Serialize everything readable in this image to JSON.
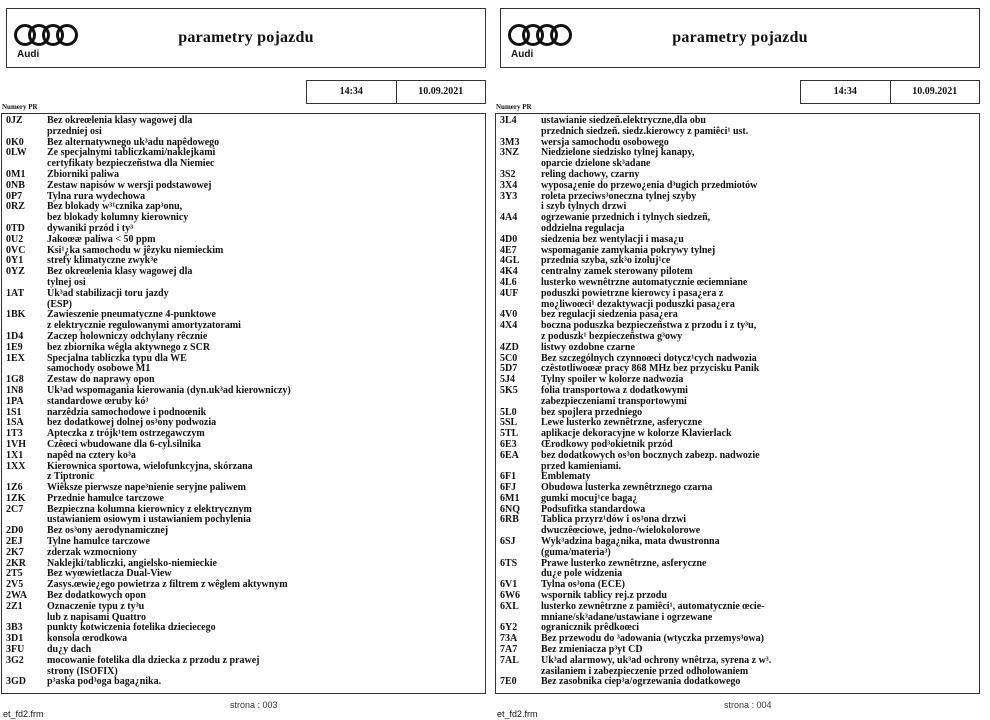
{
  "pages": [
    {
      "brand": "Audi",
      "title": "parametry pojazdu",
      "time": "14:34",
      "date": "10.09.2021",
      "section_label": "Numery PR",
      "page_number": "strona : 003",
      "form_name": "et_fd2.frm",
      "items": [
        {
          "code": "0JZ",
          "lines": [
            "Bez okreœlenia klasy wagowej dla",
            "przedniej osi"
          ]
        },
        {
          "code": "0K0",
          "lines": [
            "Bez alternatywnego uk³adu napêdowego"
          ]
        },
        {
          "code": "0LW",
          "lines": [
            "Ze specjalnymi tabliczkami/naklejkami",
            "certyfikaty bezpieczeñstwa dla Niemiec"
          ]
        },
        {
          "code": "0M1",
          "lines": [
            "Zbiorniki paliwa"
          ]
        },
        {
          "code": "0NB",
          "lines": [
            "Zestaw napisów w wersji podstawowej"
          ]
        },
        {
          "code": "0P7",
          "lines": [
            "Tylna rura wydechowa"
          ]
        },
        {
          "code": "0RZ",
          "lines": [
            "Bez blokady w³¹cznika zap³onu,",
            "bez blokady kolumny kierownicy"
          ]
        },
        {
          "code": "0TD",
          "lines": [
            "dywaniki przód i ty³"
          ]
        },
        {
          "code": "0U2",
          "lines": [
            "Jakoœæ paliwa < 50 ppm"
          ]
        },
        {
          "code": "0VC",
          "lines": [
            "Ksi¹¿ka samochodu w jêzyku niemieckim"
          ]
        },
        {
          "code": "0Y1",
          "lines": [
            "strefy klimatyczne zwyk³e"
          ]
        },
        {
          "code": "0YZ",
          "lines": [
            "Bez okreœlenia klasy wagowej dla",
            "tylnej osi"
          ]
        },
        {
          "code": "1AT",
          "lines": [
            "Uk³ad stabilizacji toru jazdy",
            "(ESP)"
          ]
        },
        {
          "code": "1BK",
          "lines": [
            "Zawieszenie pneumatyczne 4-punktowe",
            "z elektrycznie regulowanymi amortyzatorami"
          ]
        },
        {
          "code": "1D4",
          "lines": [
            "Zaczep holowniczy odchylany rêcznie"
          ]
        },
        {
          "code": "1E9",
          "lines": [
            "bez zbiornika wêgla aktywnego z SCR"
          ]
        },
        {
          "code": "1EX",
          "lines": [
            "Specjalna tabliczka typu dla WE",
            "samochody osobowe M1"
          ]
        },
        {
          "code": "1G8",
          "lines": [
            "Zestaw do naprawy opon"
          ]
        },
        {
          "code": "1N8",
          "lines": [
            "Uk³ad wspomagania kierowania (dyn.uk³ad kierowniczy)"
          ]
        },
        {
          "code": "1PA",
          "lines": [
            "standardowe œruby kó³"
          ]
        },
        {
          "code": "1S1",
          "lines": [
            "narzêdzia samochodowe i podnoœnik"
          ]
        },
        {
          "code": "1SA",
          "lines": [
            "bez dodatkowej dolnej os³ony podwozia"
          ]
        },
        {
          "code": "1T3",
          "lines": [
            "Apteczka z trójk¹tem ostrzegawczym"
          ]
        },
        {
          "code": "1VH",
          "lines": [
            "Czêœci wbudowane dla 6-cyl.silnika"
          ]
        },
        {
          "code": "1X1",
          "lines": [
            "napêd na cztery ko³a"
          ]
        },
        {
          "code": "1XX",
          "lines": [
            "Kierownica sportowa, wielofunkcyjna, skórzana",
            "z Tiptronic"
          ]
        },
        {
          "code": "1Z6",
          "lines": [
            "Wiêksze pierwsze nape³nienie seryjne paliwem"
          ]
        },
        {
          "code": "1ZK",
          "lines": [
            "Przednie hamulce tarczowe"
          ]
        },
        {
          "code": "2C7",
          "lines": [
            "Bezpieczna kolumna kierownicy z elektrycznym",
            "ustawianiem osiowym i ustawianiem pochylenia"
          ]
        },
        {
          "code": "2D0",
          "lines": [
            "Bez os³ony aerodynamicznej"
          ]
        },
        {
          "code": "2EJ",
          "lines": [
            "Tylne hamulce tarczowe"
          ]
        },
        {
          "code": "2K7",
          "lines": [
            "zderzak wzmocniony"
          ]
        },
        {
          "code": "2KR",
          "lines": [
            "Naklejki/tabliczki, angielsko-niemieckie"
          ]
        },
        {
          "code": "2T5",
          "lines": [
            "Bez wyœwietlacza Dual-View"
          ]
        },
        {
          "code": "2V5",
          "lines": [
            "Zasys.œwie¿ego powietrza z filtrem z wêglem aktywnym"
          ]
        },
        {
          "code": "2WA",
          "lines": [
            "Bez dodatkowych opon"
          ]
        },
        {
          "code": "2Z1",
          "lines": [
            "Oznaczenie typu z ty³u",
            "lub z napisami Quattro"
          ]
        },
        {
          "code": "3B3",
          "lines": [
            "punkty kotwiczenia fotelika dzieciecego"
          ]
        },
        {
          "code": "3D1",
          "lines": [
            "konsola œrodkowa"
          ]
        },
        {
          "code": "3FU",
          "lines": [
            "du¿y dach"
          ]
        },
        {
          "code": "3G2",
          "lines": [
            "mocowanie fotelika dla dziecka z przodu z prawej",
            "strony (ISOFIX)"
          ]
        },
        {
          "code": "3GD",
          "lines": [
            "p³aska pod³oga baga¿nika."
          ]
        }
      ]
    },
    {
      "brand": "Audi",
      "title": "parametry pojazdu",
      "time": "14:34",
      "date": "10.09.2021",
      "section_label": "Numery PR",
      "page_number": "strona : 004",
      "form_name": "et_fd2.frm",
      "items": [
        {
          "code": "3L4",
          "lines": [
            "ustawianie siedzeñ.elektryczne,dla obu",
            "przednich siedzeñ. siedz.kierowcy z pamiêci¹ ust."
          ]
        },
        {
          "code": "3M3",
          "lines": [
            "wersja samochodu osobowego"
          ]
        },
        {
          "code": "3NZ",
          "lines": [
            "Niedzielone siedzisko tylnej kanapy,",
            "oparcie dzielone sk³adane"
          ]
        },
        {
          "code": "3S2",
          "lines": [
            "reling dachowy, czarny"
          ]
        },
        {
          "code": "3X4",
          "lines": [
            "wyposa¿enie do przewo¿enia d³ugich przedmiotów"
          ]
        },
        {
          "code": "3Y3",
          "lines": [
            "roleta przeciws³oneczna tylnej szyby",
            "i szyb tylnych drzwi"
          ]
        },
        {
          "code": "4A4",
          "lines": [
            "ogrzewanie przednich i tylnych siedzeñ,",
            "oddzielna regulacja"
          ]
        },
        {
          "code": "4D0",
          "lines": [
            "siedzenia bez wentylacji i masa¿u"
          ]
        },
        {
          "code": "4E7",
          "lines": [
            "wspomaganie zamykania pokrywy tylnej"
          ]
        },
        {
          "code": "4GL",
          "lines": [
            "przednia szyba, szk³o izoluj¹ce"
          ]
        },
        {
          "code": "4K4",
          "lines": [
            "centralny zamek sterowany pilotem"
          ]
        },
        {
          "code": "4L6",
          "lines": [
            "lusterko wewnêtrzne automatycznie œciemniane"
          ]
        },
        {
          "code": "4UF",
          "lines": [
            "poduszki powietrzne kierowcy i pasa¿era z",
            "mo¿liwoœci¹ dezaktywacji poduszki pasa¿era"
          ]
        },
        {
          "code": "4V0",
          "lines": [
            "bez regulacji siedzenia pasa¿era"
          ]
        },
        {
          "code": "4X4",
          "lines": [
            "boczna poduszka bezpieczeñstwa z przodu i z ty³u,",
            "z poduszk¹ bezpieczeñstwa g³owy"
          ]
        },
        {
          "code": "4ZD",
          "lines": [
            "listwy ozdobne czarne"
          ]
        },
        {
          "code": "5C0",
          "lines": [
            "Bez szczególnych czynnoœci dotycz¹cych nadwozia"
          ]
        },
        {
          "code": "5D7",
          "lines": [
            "czêstotliwoœæ pracy 868 MHz bez przycisku Panik"
          ]
        },
        {
          "code": "5J4",
          "lines": [
            "Tylny spoiler w kolorze nadwozia"
          ]
        },
        {
          "code": "5K5",
          "lines": [
            "folia transportowa z dodatkowymi",
            "zabezpieczeniami transportowymi"
          ]
        },
        {
          "code": "5L0",
          "lines": [
            "bez spojlera przedniego"
          ]
        },
        {
          "code": "5SL",
          "lines": [
            "Lewe lusterko zewnêtrzne, asferyczne"
          ]
        },
        {
          "code": "5TL",
          "lines": [
            "aplikacje dekoracyjne w kolorze Klavierlack"
          ]
        },
        {
          "code": "6E3",
          "lines": [
            "Œrodkowy pod³okietnik przód"
          ]
        },
        {
          "code": "6EA",
          "lines": [
            "bez dodatkowych os³on bocznych zabezp. nadwozie",
            "przed kamieniami."
          ]
        },
        {
          "code": "6F1",
          "lines": [
            "Emblematy"
          ]
        },
        {
          "code": "6FJ",
          "lines": [
            "Obudowa lusterka zewnêtrznego czarna"
          ]
        },
        {
          "code": "6M1",
          "lines": [
            "gumki mocuj¹ce baga¿"
          ]
        },
        {
          "code": "6NQ",
          "lines": [
            "Podsufitka standardowa"
          ]
        },
        {
          "code": "6RB",
          "lines": [
            "Tablica przyrz¹dów i os³ona drzwi",
            "dwuczêœciowe, jedno-/wielokolorowe"
          ]
        },
        {
          "code": "6SJ",
          "lines": [
            "Wyk³adzina baga¿nika, mata dwustronna",
            "(guma/materia³)"
          ]
        },
        {
          "code": "6TS",
          "lines": [
            "Prawe lusterko zewnêtrzne, asferyczne",
            "du¿e pole widzenia"
          ]
        },
        {
          "code": "6V1",
          "lines": [
            "Tylna os³ona (ECE)"
          ]
        },
        {
          "code": "6W6",
          "lines": [
            "wspornik tablicy rej.z przodu"
          ]
        },
        {
          "code": "6XL",
          "lines": [
            "lusterko zewnêtrzne z pamiêci¹, automatycznie œcie-",
            "mniane/sk³adane/ustawiane i ogrzewane"
          ]
        },
        {
          "code": "6Y2",
          "lines": [
            "ogranicznik prêdkoœci"
          ]
        },
        {
          "code": "73A",
          "lines": [
            "Bez przewodu do ³adowania (wtyczka przemys³owa)"
          ]
        },
        {
          "code": "7A7",
          "lines": [
            "Bez zmieniacza p³yt CD"
          ]
        },
        {
          "code": "7AL",
          "lines": [
            "Uk³ad alarmowy, uk³ad ochrony wnêtrza, syrena z w³.",
            "zasilaniem i zabezpieczenie przed odholowaniem"
          ]
        },
        {
          "code": "7E0",
          "lines": [
            "Bez zasobnika ciep³a/ogrzewania dodatkowego"
          ]
        }
      ]
    }
  ]
}
